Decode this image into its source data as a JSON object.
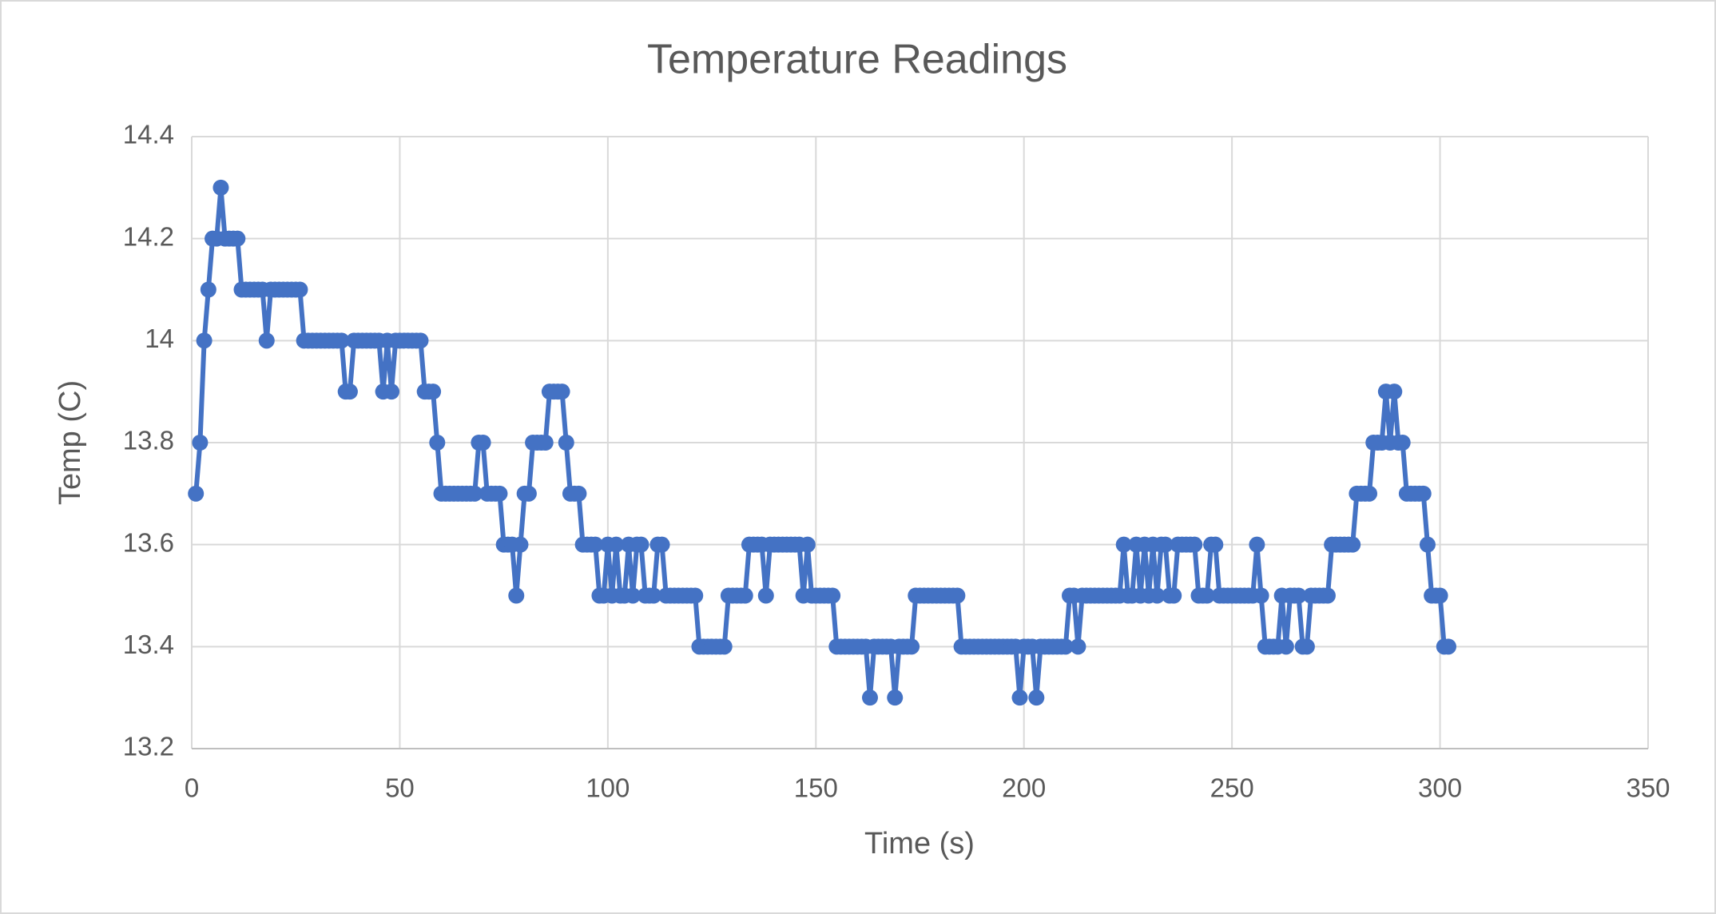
{
  "chart_data": {
    "type": "line",
    "title": "Temperature Readings",
    "x_label": "Time (s)",
    "y_label": "Temp (C)",
    "grid": true,
    "markers": true,
    "xlim": [
      0,
      350
    ],
    "xticks": [
      0,
      50,
      100,
      150,
      200,
      250,
      300,
      350
    ],
    "ylim": [
      13.2,
      14.4
    ],
    "yticks": [
      13.2,
      13.4,
      13.6,
      13.8,
      14,
      14.2,
      14.4
    ],
    "series": [
      {
        "color": "#4472c4",
        "x": [
          1,
          2,
          3,
          4,
          5,
          6,
          7,
          8,
          9,
          10,
          11,
          12,
          13,
          14,
          15,
          16,
          17,
          18,
          19,
          20,
          21,
          22,
          23,
          24,
          25,
          26,
          27,
          28,
          29,
          30,
          31,
          32,
          33,
          34,
          35,
          36,
          37,
          38,
          39,
          40,
          41,
          42,
          43,
          44,
          45,
          46,
          47,
          48,
          49,
          50,
          51,
          52,
          53,
          54,
          55,
          56,
          57,
          58,
          59,
          60,
          61,
          62,
          63,
          64,
          65,
          66,
          67,
          68,
          69,
          70,
          71,
          72,
          73,
          74,
          75,
          76,
          77,
          78,
          79,
          80,
          81,
          82,
          83,
          84,
          85,
          86,
          87,
          88,
          89,
          90,
          91,
          92,
          93,
          94,
          95,
          96,
          97,
          98,
          99,
          100,
          101,
          102,
          103,
          104,
          105,
          106,
          107,
          108,
          109,
          110,
          111,
          112,
          113,
          114,
          115,
          116,
          117,
          118,
          119,
          120,
          121,
          122,
          123,
          124,
          125,
          126,
          127,
          128,
          129,
          130,
          131,
          132,
          133,
          134,
          135,
          136,
          137,
          138,
          139,
          140,
          141,
          142,
          143,
          144,
          145,
          146,
          147,
          148,
          149,
          150,
          151,
          152,
          153,
          154,
          155,
          156,
          157,
          158,
          159,
          160,
          161,
          162,
          163,
          164,
          165,
          166,
          167,
          168,
          169,
          170,
          171,
          172,
          173,
          174,
          175,
          176,
          177,
          178,
          179,
          180,
          181,
          182,
          183,
          184,
          185,
          186,
          187,
          188,
          189,
          190,
          191,
          192,
          193,
          194,
          195,
          196,
          197,
          198,
          199,
          200,
          201,
          202,
          203,
          204,
          205,
          206,
          207,
          208,
          209,
          210,
          211,
          212,
          213,
          214,
          215,
          216,
          217,
          218,
          219,
          220,
          221,
          222,
          223,
          224,
          225,
          226,
          227,
          228,
          229,
          230,
          231,
          232,
          233,
          234,
          235,
          236,
          237,
          238,
          239,
          240,
          241,
          242,
          243,
          244,
          245,
          246,
          247,
          248,
          249,
          250,
          251,
          252,
          253,
          254,
          255,
          256,
          257,
          258,
          259,
          260,
          261,
          262,
          263,
          264,
          265,
          266,
          267,
          268,
          269,
          270,
          271,
          272,
          273,
          274,
          275,
          276,
          277,
          278,
          279,
          280,
          281,
          282,
          283,
          284,
          285,
          286,
          287,
          288,
          289,
          290,
          291,
          292,
          293,
          294,
          295,
          296,
          297,
          298,
          299,
          300,
          301,
          302
        ],
        "values": [
          13.7,
          13.8,
          14.0,
          14.1,
          14.2,
          14.2,
          14.3,
          14.2,
          14.2,
          14.2,
          14.2,
          14.1,
          14.1,
          14.1,
          14.1,
          14.1,
          14.1,
          14.0,
          14.1,
          14.1,
          14.1,
          14.1,
          14.1,
          14.1,
          14.1,
          14.1,
          14.0,
          14.0,
          14.0,
          14.0,
          14.0,
          14.0,
          14.0,
          14.0,
          14.0,
          14.0,
          13.9,
          13.9,
          14.0,
          14.0,
          14.0,
          14.0,
          14.0,
          14.0,
          14.0,
          13.9,
          14.0,
          13.9,
          14.0,
          14.0,
          14.0,
          14.0,
          14.0,
          14.0,
          14.0,
          13.9,
          13.9,
          13.9,
          13.8,
          13.7,
          13.7,
          13.7,
          13.7,
          13.7,
          13.7,
          13.7,
          13.7,
          13.7,
          13.8,
          13.8,
          13.7,
          13.7,
          13.7,
          13.7,
          13.6,
          13.6,
          13.6,
          13.5,
          13.6,
          13.7,
          13.7,
          13.8,
          13.8,
          13.8,
          13.8,
          13.9,
          13.9,
          13.9,
          13.9,
          13.8,
          13.7,
          13.7,
          13.7,
          13.6,
          13.6,
          13.6,
          13.6,
          13.5,
          13.5,
          13.6,
          13.5,
          13.6,
          13.5,
          13.5,
          13.6,
          13.5,
          13.6,
          13.6,
          13.5,
          13.5,
          13.5,
          13.6,
          13.6,
          13.5,
          13.5,
          13.5,
          13.5,
          13.5,
          13.5,
          13.5,
          13.5,
          13.4,
          13.4,
          13.4,
          13.4,
          13.4,
          13.4,
          13.4,
          13.5,
          13.5,
          13.5,
          13.5,
          13.5,
          13.6,
          13.6,
          13.6,
          13.6,
          13.5,
          13.6,
          13.6,
          13.6,
          13.6,
          13.6,
          13.6,
          13.6,
          13.6,
          13.5,
          13.6,
          13.5,
          13.5,
          13.5,
          13.5,
          13.5,
          13.5,
          13.4,
          13.4,
          13.4,
          13.4,
          13.4,
          13.4,
          13.4,
          13.4,
          13.3,
          13.4,
          13.4,
          13.4,
          13.4,
          13.4,
          13.3,
          13.4,
          13.4,
          13.4,
          13.4,
          13.5,
          13.5,
          13.5,
          13.5,
          13.5,
          13.5,
          13.5,
          13.5,
          13.5,
          13.5,
          13.5,
          13.4,
          13.4,
          13.4,
          13.4,
          13.4,
          13.4,
          13.4,
          13.4,
          13.4,
          13.4,
          13.4,
          13.4,
          13.4,
          13.4,
          13.3,
          13.4,
          13.4,
          13.4,
          13.3,
          13.4,
          13.4,
          13.4,
          13.4,
          13.4,
          13.4,
          13.4,
          13.5,
          13.5,
          13.4,
          13.5,
          13.5,
          13.5,
          13.5,
          13.5,
          13.5,
          13.5,
          13.5,
          13.5,
          13.5,
          13.6,
          13.5,
          13.5,
          13.6,
          13.5,
          13.6,
          13.5,
          13.6,
          13.5,
          13.6,
          13.6,
          13.5,
          13.5,
          13.6,
          13.6,
          13.6,
          13.6,
          13.6,
          13.5,
          13.5,
          13.5,
          13.6,
          13.6,
          13.5,
          13.5,
          13.5,
          13.5,
          13.5,
          13.5,
          13.5,
          13.5,
          13.5,
          13.6,
          13.5,
          13.4,
          13.4,
          13.4,
          13.4,
          13.5,
          13.4,
          13.5,
          13.5,
          13.5,
          13.4,
          13.4,
          13.5,
          13.5,
          13.5,
          13.5,
          13.5,
          13.6,
          13.6,
          13.6,
          13.6,
          13.6,
          13.6,
          13.7,
          13.7,
          13.7,
          13.7,
          13.8,
          13.8,
          13.8,
          13.9,
          13.8,
          13.9,
          13.8,
          13.8,
          13.7,
          13.7,
          13.7,
          13.7,
          13.7,
          13.6,
          13.5,
          13.5,
          13.5,
          13.4,
          13.4
        ]
      }
    ]
  }
}
